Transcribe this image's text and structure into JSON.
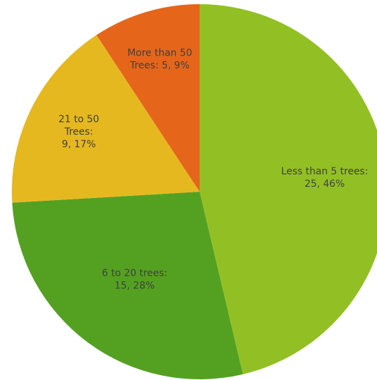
{
  "chart_data": {
    "type": "pie",
    "title": "",
    "start_angle_deg": 0,
    "direction": "clockwise",
    "slices": [
      {
        "label_lines": [
          "Less than 5 trees:",
          "25, 46%"
        ],
        "category": "Less than 5 trees",
        "value": 25,
        "percent": 46,
        "color": "#92c024"
      },
      {
        "label_lines": [
          "6 to 20 trees:",
          "15, 28%"
        ],
        "category": "6 to 20 trees",
        "value": 15,
        "percent": 28,
        "color": "#54a122"
      },
      {
        "label_lines": [
          "21 to 50",
          "Trees:",
          "9, 17%"
        ],
        "category": "21 to 50 Trees",
        "value": 9,
        "percent": 17,
        "color": "#e6b820"
      },
      {
        "label_lines": [
          "More than 50",
          "Trees: 5, 9%"
        ],
        "category": "More than 50 Trees",
        "value": 5,
        "percent": 9,
        "color": "#e5661b"
      }
    ]
  }
}
